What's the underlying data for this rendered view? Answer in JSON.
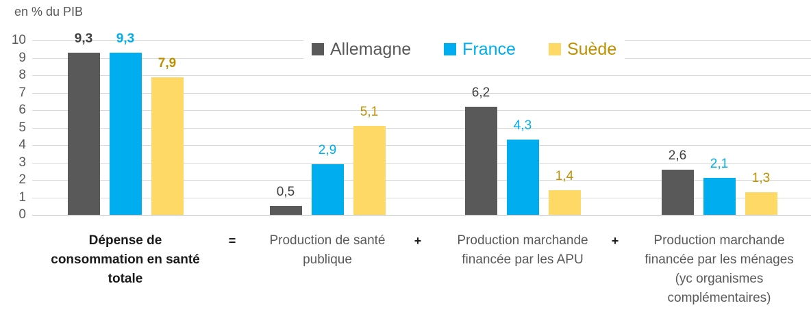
{
  "chart_data": {
    "type": "bar",
    "axis_unit_label": "en % du PIB",
    "ylim": [
      0,
      10
    ],
    "ytick_step": 1,
    "grid": true,
    "legend_position": "top",
    "decimal_separator": ",",
    "series": [
      {
        "name": "Allemagne",
        "color": "#595959",
        "label_color": "#404040",
        "legend_text_color": "#595959",
        "values": [
          9.3,
          0.5,
          6.2,
          2.6
        ],
        "value_labels": [
          "9,3",
          "0,5",
          "6,2",
          "2,6"
        ]
      },
      {
        "name": "France",
        "color": "#00AEEF",
        "label_color": "#00AEEF",
        "legend_text_color": "#00AEEF",
        "values": [
          9.3,
          2.9,
          4.3,
          2.1
        ],
        "value_labels": [
          "9,3",
          "2,9",
          "4,3",
          "2,1"
        ]
      },
      {
        "name": "Suède",
        "color": "#FFD966",
        "label_color": "#BF9000",
        "legend_text_color": "#BF9000",
        "values": [
          7.9,
          5.1,
          1.4,
          1.3
        ],
        "value_labels": [
          "7,9",
          "5,1",
          "1,4",
          "1,3"
        ]
      }
    ],
    "categories": [
      {
        "lines": [
          "Dépense de",
          "consommation en santé",
          "totale"
        ],
        "emphasis": true
      },
      {
        "lines": [
          "Production de santé",
          "publique"
        ],
        "emphasis": false
      },
      {
        "lines": [
          "Production marchande",
          "financée par les APU"
        ],
        "emphasis": false
      },
      {
        "lines": [
          "Production marchande",
          "financée par les ménages",
          "(yc organismes",
          "complémentaires)"
        ],
        "emphasis": false
      }
    ],
    "separators": [
      "=",
      "+",
      "+"
    ],
    "value_label_bold_category_index": 0
  }
}
